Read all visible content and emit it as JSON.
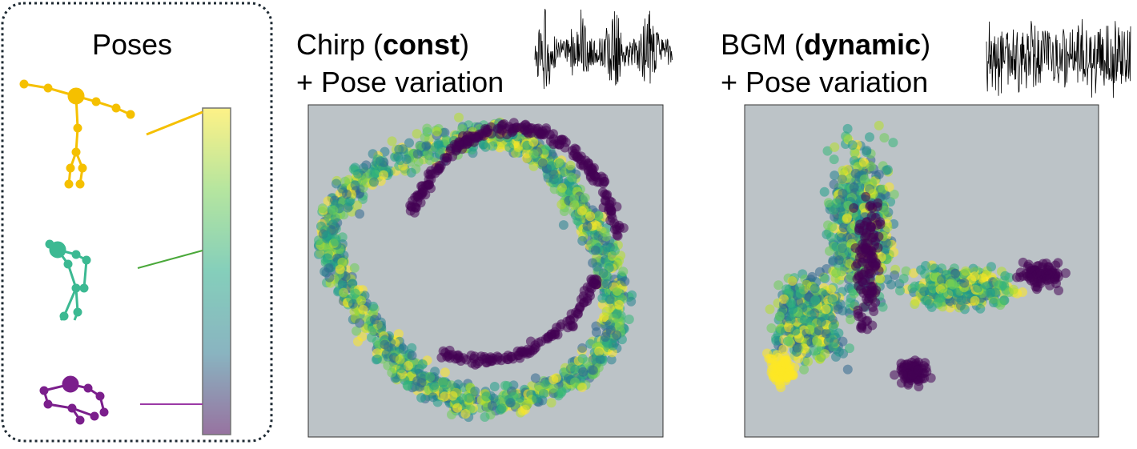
{
  "poses": {
    "title": "Poses"
  },
  "panels": [
    {
      "before": "Chirp (",
      "bold": "const",
      "after": ")",
      "subtitle": "+ Pose variation"
    },
    {
      "before": "BGM (",
      "bold": "dynamic",
      "after": ")",
      "subtitle": "+ Pose variation"
    }
  ]
}
